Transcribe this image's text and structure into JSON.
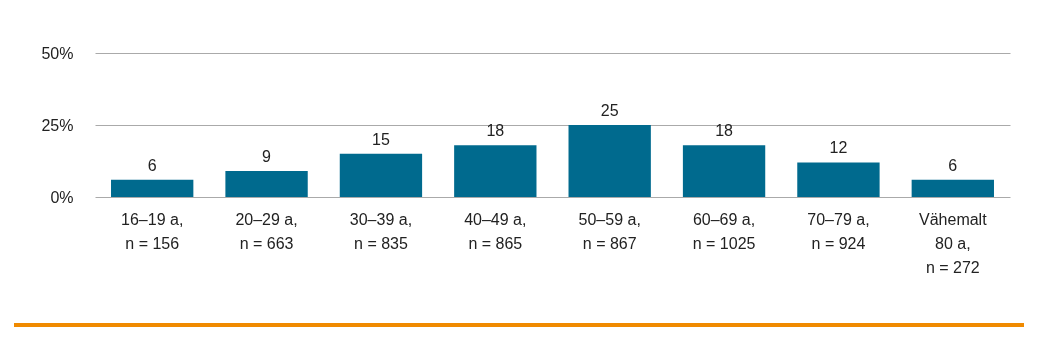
{
  "chart_data": {
    "type": "bar",
    "categories": [
      "16–19 a,\nn = 156",
      "20–29 a,\nn = 663",
      "30–39 a,\nn = 835",
      "40–49 a,\nn = 865",
      "50–59 a,\nn = 867",
      "60–69 a,\nn = 1025",
      "70–79 a,\nn = 924",
      "Vähemalt\n80 a,\nn = 272"
    ],
    "values": [
      6,
      9,
      15,
      18,
      25,
      18,
      12,
      6
    ],
    "color": "#006a8e",
    "ylim": [
      0,
      50
    ],
    "yticks": [
      {
        "value": 0,
        "label": "0%"
      },
      {
        "value": 25,
        "label": "25%"
      },
      {
        "value": 50,
        "label": "50%"
      }
    ],
    "grid": "y",
    "data_labels": true
  }
}
